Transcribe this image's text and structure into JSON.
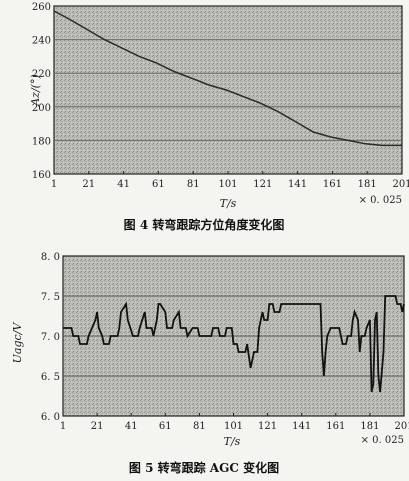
{
  "chart_data": [
    {
      "type": "line",
      "caption": "图 4 转弯跟踪方位角度变化图",
      "xlabel": "T/s",
      "x_scale_note": "× 0. 025",
      "ylabel": "Az/(°)",
      "xlim": [
        1,
        201
      ],
      "ylim": [
        160,
        260
      ],
      "x_ticks": [
        "1",
        "21",
        "41",
        "61",
        "81",
        "101",
        "121",
        "141",
        "161",
        "181",
        "201"
      ],
      "y_ticks": [
        "160",
        "180",
        "200",
        "220",
        "240",
        "260"
      ],
      "grid": true,
      "series": [
        {
          "x": [
            1,
            10,
            20,
            30,
            40,
            50,
            60,
            70,
            80,
            90,
            100,
            110,
            120,
            130,
            140,
            150,
            160,
            170,
            180,
            190,
            200,
            201
          ],
          "y": [
            257,
            252,
            246,
            240,
            235,
            230,
            226,
            221,
            217,
            213,
            210,
            206,
            202,
            197,
            191,
            185,
            182,
            180,
            178,
            177,
            177,
            177
          ]
        }
      ]
    },
    {
      "type": "line",
      "caption": "图 5 转弯跟踪 AGC 变化图",
      "xlabel": "T/s",
      "x_scale_note": "× 0. 025",
      "ylabel": "Uagc/V",
      "xlim": [
        1,
        201
      ],
      "ylim": [
        6.0,
        8.0
      ],
      "x_ticks": [
        "1",
        "21",
        "41",
        "61",
        "81",
        "101",
        "121",
        "141",
        "161",
        "181",
        "201"
      ],
      "y_ticks": [
        "6. 0",
        "6. 5",
        "7. 0",
        "7. 5",
        "8. 0"
      ],
      "grid": true,
      "series": [
        {
          "x": [
            1,
            6,
            7,
            10,
            11,
            15,
            16,
            18,
            20,
            21,
            22,
            24,
            25,
            28,
            29,
            33,
            34,
            35,
            38,
            39,
            42,
            45,
            46,
            49,
            50,
            53,
            54,
            56,
            57,
            58,
            61,
            62,
            65,
            66,
            69,
            70,
            73,
            74,
            77,
            80,
            81,
            88,
            89,
            92,
            93,
            96,
            97,
            100,
            101,
            103,
            104,
            108,
            109,
            111,
            112,
            113,
            115,
            116,
            118,
            119,
            121,
            122,
            124,
            125,
            128,
            129,
            132,
            133,
            135,
            136,
            140,
            141,
            147,
            152,
            153,
            154,
            155,
            156,
            158,
            159,
            163,
            164,
            165,
            167,
            168,
            170,
            171,
            172,
            174,
            175,
            176,
            178,
            179,
            181,
            182,
            183,
            184,
            185,
            186,
            187,
            189,
            190,
            191,
            193,
            196,
            197,
            199,
            200,
            201
          ],
          "y": [
            7.1,
            7.1,
            7.0,
            7.0,
            6.9,
            6.9,
            7.0,
            7.1,
            7.2,
            7.3,
            7.1,
            7.0,
            6.9,
            6.9,
            7.0,
            7.0,
            7.1,
            7.3,
            7.4,
            7.2,
            7.0,
            7.0,
            7.1,
            7.3,
            7.1,
            7.1,
            7.0,
            7.2,
            7.4,
            7.4,
            7.3,
            7.1,
            7.1,
            7.2,
            7.3,
            7.1,
            7.1,
            7.0,
            7.1,
            7.1,
            7.0,
            7.0,
            7.1,
            7.1,
            7.0,
            7.0,
            7.1,
            7.1,
            6.9,
            6.9,
            6.8,
            6.8,
            6.9,
            6.6,
            6.7,
            6.8,
            6.8,
            7.1,
            7.3,
            7.2,
            7.2,
            7.4,
            7.4,
            7.3,
            7.3,
            7.4,
            7.4,
            7.4,
            7.4,
            7.4,
            7.4,
            7.4,
            7.4,
            7.4,
            6.8,
            6.5,
            6.8,
            7.0,
            7.1,
            7.1,
            7.1,
            7.0,
            6.9,
            6.9,
            7.0,
            7.0,
            7.2,
            7.3,
            7.2,
            6.8,
            7.0,
            7.0,
            7.1,
            7.2,
            6.3,
            6.4,
            7.2,
            7.3,
            6.5,
            6.3,
            6.8,
            7.5,
            7.5,
            7.5,
            7.5,
            7.4,
            7.4,
            7.3,
            7.4
          ]
        }
      ]
    }
  ]
}
